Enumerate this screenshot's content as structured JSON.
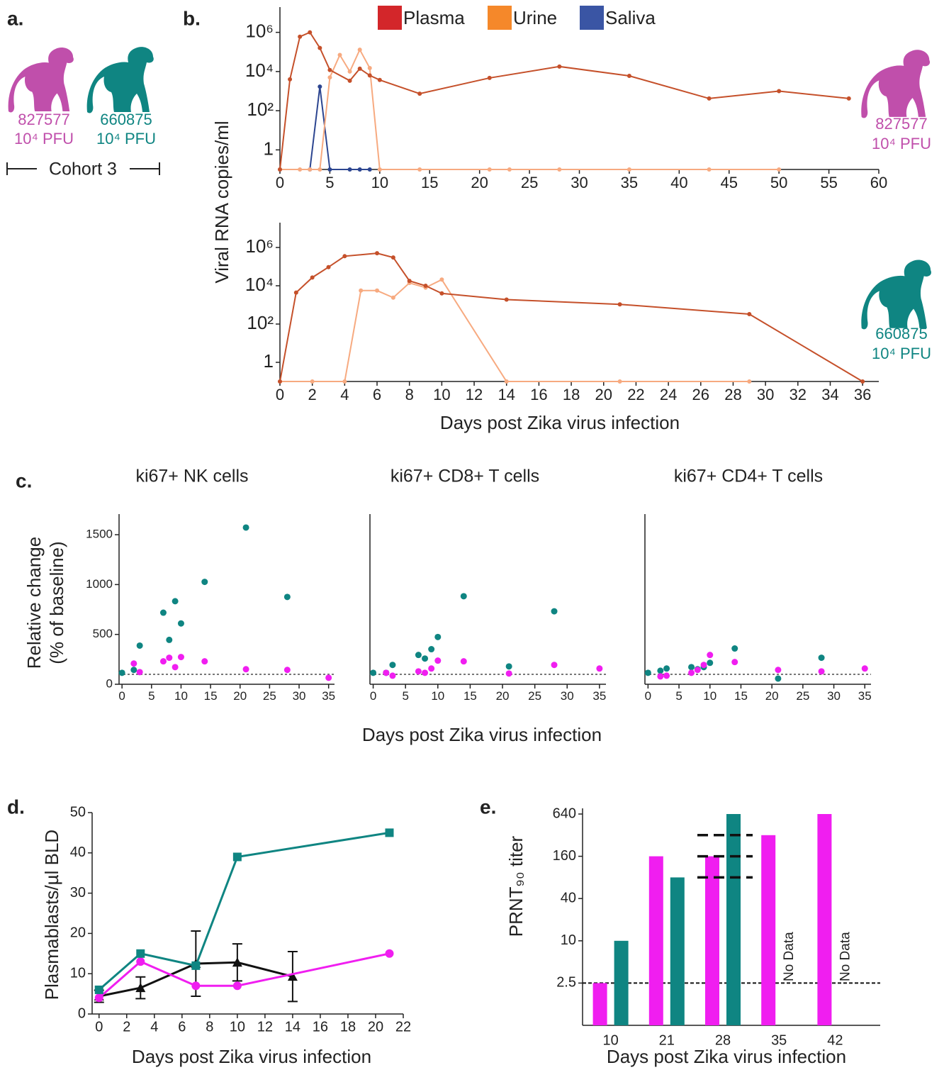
{
  "panel_a": {
    "label": "a.",
    "cohort": "Cohort 3",
    "animals": [
      {
        "id": "827577",
        "dose": "10⁴ PFU",
        "color": "#c04fab"
      },
      {
        "id": "660875",
        "dose": "10⁴ PFU",
        "color": "#0f8582"
      }
    ]
  },
  "chart_data": [
    {
      "type": "line",
      "panel_label": "b.",
      "y_label": "Viral RNA copies/ml",
      "log_y": true,
      "xlim": [
        0,
        60
      ],
      "xticks": [
        0,
        5,
        10,
        15,
        20,
        25,
        30,
        35,
        40,
        45,
        50,
        55,
        60
      ],
      "ylim": [
        0.1,
        10000000
      ],
      "yticks": [
        1,
        {
          "value": 100,
          "label": "10²"
        },
        {
          "value": 10000,
          "label": "10⁴"
        },
        {
          "value": 1000000,
          "label": "10⁶"
        }
      ],
      "annotations": [
        "827577",
        "10⁴ PFU"
      ],
      "annotation_color": "#c04fab",
      "series": [
        {
          "name": "Plasma",
          "color": "#c5502a",
          "legend_color": "#d3262a",
          "x": [
            0,
            1,
            2,
            3,
            4,
            5,
            7,
            8,
            9,
            10,
            14,
            21,
            28,
            35,
            43,
            50,
            57
          ],
          "values": [
            0.1,
            4000,
            600000,
            1000000,
            160000,
            12000,
            3400,
            14000,
            6300,
            3700,
            740,
            4700,
            18000,
            6000,
            420,
            1000,
            420
          ]
        },
        {
          "name": "Urine",
          "color": "#f7aa80",
          "legend_color": "#f5882a",
          "x": [
            0,
            2,
            3,
            4,
            5,
            6,
            7,
            8,
            9,
            10,
            14,
            21,
            23,
            28,
            35,
            43,
            50
          ],
          "values": [
            0.1,
            0.1,
            0.1,
            0.1,
            5000,
            70000,
            10000,
            130000,
            15000,
            0.1,
            0.1,
            0.1,
            0.1,
            0.1,
            0.1,
            0.1,
            0.1
          ]
        },
        {
          "name": "Saliva",
          "color": "#2c4590",
          "legend_color": "#3a55a4",
          "x": [
            0,
            3,
            4,
            5,
            7,
            8,
            9
          ],
          "values": [
            0.1,
            0.1,
            1700,
            0.1,
            0.1,
            0.1,
            0.1
          ]
        }
      ]
    },
    {
      "type": "line",
      "x_label": "Days post Zika virus infection",
      "log_y": true,
      "xlim": [
        0,
        37
      ],
      "xticks": [
        0,
        2,
        4,
        6,
        8,
        10,
        12,
        14,
        16,
        18,
        20,
        22,
        24,
        26,
        28,
        30,
        32,
        34,
        36
      ],
      "ylim": [
        0.1,
        10000000
      ],
      "yticks": [
        1,
        {
          "value": 100,
          "label": "10²"
        },
        {
          "value": 10000,
          "label": "10⁴"
        },
        {
          "value": 1000000,
          "label": "10⁶"
        }
      ],
      "annotations": [
        "660875",
        "10⁴ PFU"
      ],
      "annotation_color": "#0f8582",
      "series": [
        {
          "color": "#c5502a",
          "x": [
            0,
            1,
            2,
            3,
            4,
            6,
            7,
            8,
            9,
            10,
            14,
            21,
            29,
            36
          ],
          "values": [
            0.1,
            4400,
            27000,
            94000,
            350000,
            500000,
            300000,
            18000,
            10000,
            4000,
            1900,
            1070,
            330,
            0.1
          ]
        },
        {
          "color": "#f7aa80",
          "x": [
            0,
            2,
            4,
            5,
            6,
            7,
            8,
            9,
            10,
            14,
            21,
            29
          ],
          "values": [
            0.1,
            0.1,
            0.1,
            5600,
            5600,
            2400,
            14000,
            8000,
            21000,
            0.1,
            0.1,
            0.1
          ]
        }
      ]
    },
    {
      "type": "scatter",
      "panel_label": "c.",
      "title": "ki67+ NK cells",
      "y_label": [
        "Relative change",
        "(% of baseline)"
      ],
      "xlim": [
        -0.5,
        36
      ],
      "xticks": [
        0,
        5,
        10,
        15,
        20,
        25,
        30,
        35
      ],
      "ylim": [
        0,
        1650
      ],
      "yticks": [
        0,
        500,
        1000,
        1500
      ],
      "reference_line": 100,
      "series": [
        {
          "color": "#0f8582",
          "x": [
            0,
            2,
            3,
            7,
            8,
            9,
            10,
            14,
            21,
            28
          ],
          "values": [
            115,
            144,
            388,
            718,
            445,
            833,
            610,
            1027,
            1572,
            876
          ]
        },
        {
          "color": "#f01ef0",
          "x": [
            2,
            3,
            7,
            8,
            9,
            10,
            14,
            21,
            28,
            35
          ],
          "values": [
            208,
            122,
            230,
            266,
            172,
            273,
            230,
            151,
            144,
            65
          ]
        }
      ]
    },
    {
      "type": "scatter",
      "title": "ki67+ CD8+ T cells",
      "x_label": "Days post Zika virus infection",
      "xlim": [
        -0.5,
        36
      ],
      "xticks": [
        0,
        5,
        10,
        15,
        20,
        25,
        30,
        35
      ],
      "ylim": [
        0,
        1650
      ],
      "reference_line": 100,
      "series": [
        {
          "color": "#0f8582",
          "x": [
            0,
            2,
            3,
            7,
            8,
            9,
            10,
            14,
            21,
            28
          ],
          "values": [
            115,
            115,
            194,
            294,
            258,
            352,
            474,
            883,
            179,
            732
          ]
        },
        {
          "color": "#f01ef0",
          "x": [
            2,
            3,
            7,
            8,
            9,
            10,
            14,
            21,
            28,
            35
          ],
          "values": [
            115,
            86,
            129,
            115,
            158,
            237,
            230,
            108,
            194,
            158
          ]
        }
      ]
    },
    {
      "type": "scatter",
      "title": "ki67+ CD4+ T cells",
      "xlim": [
        -0.5,
        36
      ],
      "xticks": [
        0,
        5,
        10,
        15,
        20,
        25,
        30,
        35
      ],
      "ylim": [
        0,
        1650
      ],
      "reference_line": 100,
      "series": [
        {
          "color": "#0f8582",
          "x": [
            0,
            2,
            3,
            7,
            8,
            9,
            10,
            14,
            21,
            28
          ],
          "values": [
            115,
            136,
            158,
            172,
            151,
            172,
            215,
            359,
            57,
            266
          ]
        },
        {
          "color": "#f01ef0",
          "x": [
            2,
            3,
            7,
            8,
            9,
            10,
            14,
            21,
            28,
            35
          ],
          "values": [
            79,
            86,
            115,
            144,
            194,
            294,
            223,
            144,
            129,
            158
          ]
        }
      ]
    },
    {
      "type": "line",
      "panel_label": "d.",
      "y_label": "Plasmablasts/µl BLD",
      "x_label": "Days post Zika virus infection",
      "xlim": [
        -0.5,
        22
      ],
      "xticks": [
        0,
        2,
        4,
        6,
        8,
        10,
        12,
        14,
        16,
        18,
        20,
        22
      ],
      "ylim": [
        0,
        50
      ],
      "yticks": [
        0,
        10,
        20,
        30,
        40,
        50
      ],
      "series": [
        {
          "color": "#0f8582",
          "marker": "square",
          "x": [
            0,
            3,
            7,
            10,
            21
          ],
          "values": [
            6,
            15,
            12,
            39,
            45
          ]
        },
        {
          "color": "#f01ef0",
          "marker": "circle",
          "x": [
            0,
            3,
            7,
            10,
            21
          ],
          "values": [
            4,
            13,
            7,
            7,
            15
          ]
        },
        {
          "color": "#111111",
          "marker": "triangle",
          "x": [
            0,
            3,
            7,
            10,
            14
          ],
          "values": [
            4.4,
            6.5,
            12.5,
            12.8,
            9.3
          ],
          "errors": [
            1.5,
            2.7,
            8.1,
            4.6,
            6.2
          ]
        }
      ]
    },
    {
      "type": "bar",
      "panel_label": "e.",
      "y_label": "PRNT₉₀ titer",
      "x_label": "Days post Zika virus infection",
      "log_y": true,
      "categories": [
        "10",
        "21",
        "28",
        "35",
        "42"
      ],
      "ylim": [
        0.625,
        640
      ],
      "yticks": [
        2.5,
        10,
        40,
        160,
        640
      ],
      "reference_line": 2.5,
      "reference_marks": [
        {
          "category": "28",
          "value": 320
        },
        {
          "category": "28",
          "value": 160
        },
        {
          "category": "28",
          "value": 80
        }
      ],
      "series": [
        {
          "color": "#f01ef0",
          "values": [
            2.5,
            160,
            160,
            320,
            640
          ]
        },
        {
          "color": "#0f8582",
          "values": [
            10,
            80,
            640,
            null,
            null
          ],
          "value_labels": [
            null,
            null,
            null,
            "No Data",
            "No Data"
          ]
        }
      ]
    }
  ]
}
